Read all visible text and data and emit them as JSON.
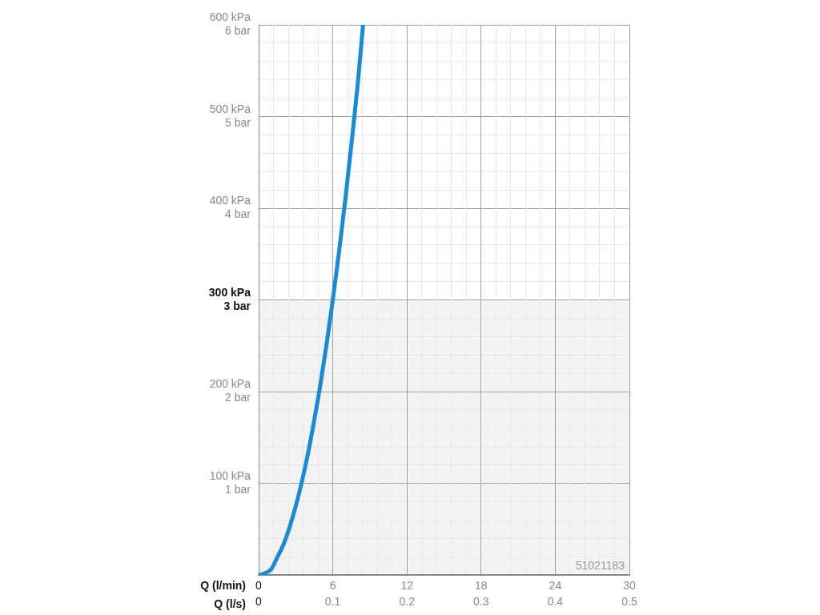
{
  "chart_data": {
    "type": "line",
    "xlabel": "Q (l/min)",
    "x2label": "Q (l/s)",
    "x": [
      0,
      0.5,
      1,
      1.5,
      2,
      2.5,
      3,
      3.5,
      4,
      4.5,
      5,
      5.5,
      6,
      6.5,
      7,
      7.5,
      8,
      8.45
    ],
    "series": [
      {
        "color": "#1a8ad8",
        "values": [
          0,
          2,
          6,
          19,
          33,
          52,
          75,
          102,
          133,
          169,
          208,
          252,
          300,
          352,
          408,
          469,
          533,
          600
        ]
      }
    ],
    "xlim": [
      0,
      30
    ],
    "x2lim": [
      0,
      0.5
    ],
    "ylim": [
      0,
      600
    ],
    "xticks": [
      0,
      {
        "value": 1.2,
        "label": null
      },
      {
        "value": 2.4,
        "label": null
      },
      {
        "value": 3.6,
        "label": null
      },
      {
        "value": 4.8,
        "label": null
      },
      6,
      {
        "value": 7.2,
        "label": null
      },
      {
        "value": 8.4,
        "label": null
      },
      {
        "value": 9.6,
        "label": null
      },
      {
        "value": 10.8,
        "label": null
      },
      12,
      {
        "value": 13.2,
        "label": null
      },
      {
        "value": 14.4,
        "label": null
      },
      {
        "value": 15.6,
        "label": null
      },
      {
        "value": 16.8,
        "label": null
      },
      18,
      {
        "value": 19.2,
        "label": null
      },
      {
        "value": 20.4,
        "label": null
      },
      {
        "value": 21.6,
        "label": null
      },
      {
        "value": 22.8,
        "label": null
      },
      24,
      {
        "value": 25.2,
        "label": null
      },
      {
        "value": 26.4,
        "label": null
      },
      {
        "value": 27.6,
        "label": null
      },
      {
        "value": 28.8,
        "label": null
      },
      30
    ],
    "x2ticks": [
      0,
      0.1,
      0.2,
      0.3,
      0.4,
      0.5
    ],
    "yticks": [
      {
        "value": 0,
        "label": null
      },
      {
        "value": 20,
        "label": null
      },
      {
        "value": 40,
        "label": null
      },
      {
        "value": 60,
        "label": null
      },
      {
        "value": 80,
        "label": null
      },
      {
        "value": 100,
        "label": "100 kPa"
      },
      {
        "value": 120,
        "label": null
      },
      {
        "value": 140,
        "label": null
      },
      {
        "value": 160,
        "label": null
      },
      {
        "value": 180,
        "label": null
      },
      {
        "value": 200,
        "label": "200 kPa"
      },
      {
        "value": 220,
        "label": null
      },
      {
        "value": 240,
        "label": null
      },
      {
        "value": 260,
        "label": null
      },
      {
        "value": 280,
        "label": null
      },
      {
        "value": 300,
        "label": "300 kPa"
      },
      {
        "value": 320,
        "label": null
      },
      {
        "value": 340,
        "label": null
      },
      {
        "value": 360,
        "label": null
      },
      {
        "value": 380,
        "label": null
      },
      {
        "value": 400,
        "label": "400 kPa"
      },
      {
        "value": 420,
        "label": null
      },
      {
        "value": 440,
        "label": null
      },
      {
        "value": 460,
        "label": null
      },
      {
        "value": 480,
        "label": null
      },
      {
        "value": 500,
        "label": "500 kPa"
      },
      {
        "value": 520,
        "label": null
      },
      {
        "value": 540,
        "label": null
      },
      {
        "value": 560,
        "label": null
      },
      {
        "value": 580,
        "label": null
      },
      {
        "value": 600,
        "label": "600 kPa"
      }
    ],
    "y2lim": [
      0,
      6
    ],
    "y2ticks": [
      {
        "value": 1,
        "label": "1 bar"
      },
      {
        "value": 2,
        "label": "2 bar"
      },
      {
        "value": 3,
        "label": "3 bar"
      },
      {
        "value": 4,
        "label": "4 bar"
      },
      {
        "value": 5,
        "label": "5 bar"
      },
      {
        "value": 6,
        "label": "6 bar"
      }
    ],
    "bands": [
      {
        "axis": "y",
        "from": 0,
        "to": 300,
        "color": "#f3f3f3"
      }
    ],
    "grid": true,
    "legend": false,
    "marker": "none",
    "line_style": "solid",
    "annotations": [
      "51021183"
    ]
  }
}
